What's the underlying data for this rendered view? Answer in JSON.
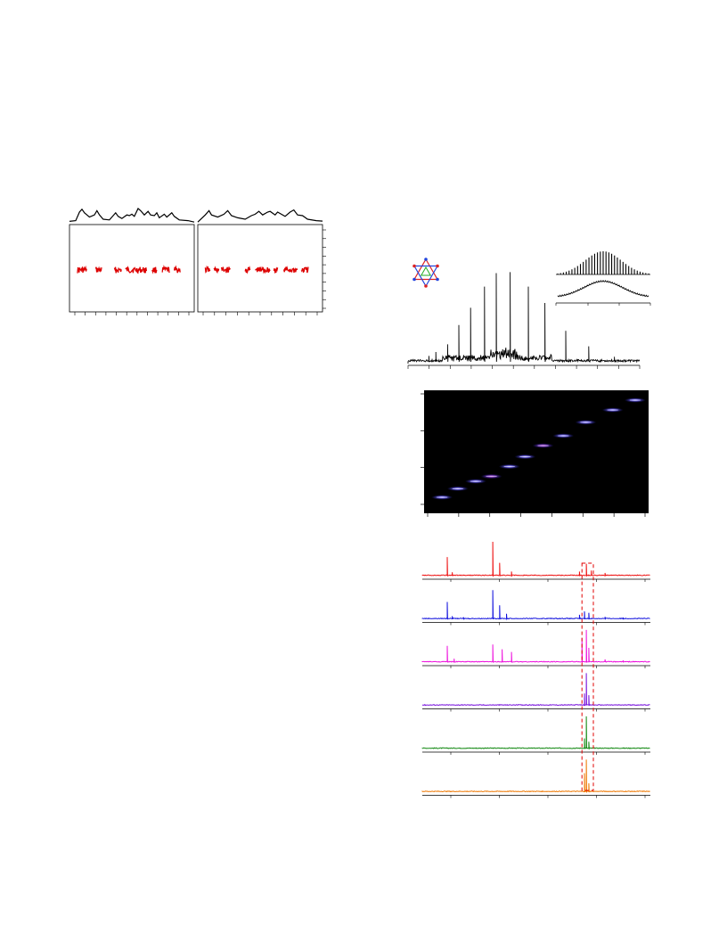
{
  "figure_left": {
    "panels": [
      {
        "id": "panel-a",
        "trace": [
          [
            0,
            0.1
          ],
          [
            0.05,
            0.15
          ],
          [
            0.08,
            0.75
          ],
          [
            0.1,
            0.95
          ],
          [
            0.12,
            0.7
          ],
          [
            0.14,
            0.55
          ],
          [
            0.16,
            0.4
          ],
          [
            0.2,
            0.55
          ],
          [
            0.22,
            0.85
          ],
          [
            0.24,
            0.55
          ],
          [
            0.27,
            0.25
          ],
          [
            0.32,
            0.2
          ],
          [
            0.37,
            0.7
          ],
          [
            0.39,
            0.45
          ],
          [
            0.42,
            0.3
          ],
          [
            0.46,
            0.55
          ],
          [
            0.48,
            0.5
          ],
          [
            0.5,
            0.6
          ],
          [
            0.52,
            0.45
          ],
          [
            0.55,
            1.0
          ],
          [
            0.57,
            0.85
          ],
          [
            0.6,
            0.55
          ],
          [
            0.63,
            0.8
          ],
          [
            0.65,
            0.55
          ],
          [
            0.68,
            0.5
          ],
          [
            0.7,
            0.7
          ],
          [
            0.72,
            0.35
          ],
          [
            0.76,
            0.6
          ],
          [
            0.78,
            0.4
          ],
          [
            0.82,
            0.7
          ],
          [
            0.84,
            0.45
          ],
          [
            0.88,
            0.2
          ],
          [
            0.95,
            0.15
          ],
          [
            1.0,
            0.05
          ]
        ],
        "clusters": [
          [
            0.06,
            0.14
          ],
          [
            0.21,
            0.26
          ],
          [
            0.36,
            0.42
          ],
          [
            0.45,
            0.62
          ],
          [
            0.66,
            0.7
          ],
          [
            0.74,
            0.8
          ],
          [
            0.84,
            0.89
          ]
        ],
        "cluster_level": 0.52,
        "x_ticks": 12,
        "y_ticks": 0
      },
      {
        "id": "panel-b",
        "trace": [
          [
            0,
            0.05
          ],
          [
            0.06,
            0.55
          ],
          [
            0.09,
            0.85
          ],
          [
            0.11,
            0.55
          ],
          [
            0.16,
            0.4
          ],
          [
            0.21,
            0.6
          ],
          [
            0.24,
            0.85
          ],
          [
            0.27,
            0.5
          ],
          [
            0.32,
            0.35
          ],
          [
            0.38,
            0.25
          ],
          [
            0.43,
            0.5
          ],
          [
            0.46,
            0.6
          ],
          [
            0.49,
            0.8
          ],
          [
            0.52,
            0.55
          ],
          [
            0.56,
            0.75
          ],
          [
            0.58,
            0.8
          ],
          [
            0.62,
            0.55
          ],
          [
            0.64,
            0.75
          ],
          [
            0.67,
            0.6
          ],
          [
            0.7,
            0.45
          ],
          [
            0.74,
            0.75
          ],
          [
            0.77,
            0.9
          ],
          [
            0.8,
            0.55
          ],
          [
            0.84,
            0.5
          ],
          [
            0.88,
            0.25
          ],
          [
            0.95,
            0.15
          ],
          [
            1.0,
            0.12
          ]
        ],
        "clusters": [
          [
            0.06,
            0.1
          ],
          [
            0.13,
            0.17
          ],
          [
            0.19,
            0.26
          ],
          [
            0.38,
            0.42
          ],
          [
            0.46,
            0.58
          ],
          [
            0.61,
            0.64
          ],
          [
            0.69,
            0.8
          ],
          [
            0.83,
            0.89
          ]
        ],
        "cluster_level": 0.52,
        "x_ticks": 11,
        "y_ticks": 10
      }
    ]
  },
  "figure_right": {
    "colors": {
      "spectrum": "#000000",
      "heatmap_bg": "#000000",
      "dashed_box": "#e00000",
      "traces": [
        "#ee1111",
        "#1111dd",
        "#ee11dd",
        "#7711dd",
        "#118811",
        "#ee7700"
      ]
    },
    "molecule_icon": "star-of-david-molecule-icon",
    "spectrum": {
      "peaks": [
        [
          0.09,
          0.08
        ],
        [
          0.12,
          0.12
        ],
        [
          0.17,
          0.2
        ],
        [
          0.22,
          0.4
        ],
        [
          0.27,
          0.58
        ],
        [
          0.33,
          0.8
        ],
        [
          0.38,
          0.94
        ],
        [
          0.44,
          0.95
        ],
        [
          0.52,
          0.8
        ],
        [
          0.59,
          0.63
        ],
        [
          0.68,
          0.34
        ],
        [
          0.78,
          0.18
        ],
        [
          0.89,
          0.07
        ]
      ],
      "x_ticks": 12
    },
    "inset": {
      "comb_peaks": 33,
      "envelope_peak": 0.5
    },
    "heatmap": {
      "blobs": [
        [
          0.08,
          0.13
        ],
        [
          0.15,
          0.2
        ],
        [
          0.23,
          0.26
        ],
        [
          0.3,
          0.3
        ],
        [
          0.38,
          0.38
        ],
        [
          0.45,
          0.46
        ],
        [
          0.53,
          0.55
        ],
        [
          0.62,
          0.63
        ],
        [
          0.72,
          0.74
        ],
        [
          0.84,
          0.84
        ],
        [
          0.94,
          0.92
        ]
      ],
      "x_ticks": 8,
      "y_ticks": 4
    },
    "traces": [
      {
        "id": "trace-1",
        "peaks": [
          [
            0.11,
            0.55
          ],
          [
            0.13,
            0.1
          ],
          [
            0.31,
            1.0
          ],
          [
            0.34,
            0.38
          ],
          [
            0.39,
            0.12
          ],
          [
            0.69,
            0.12
          ],
          [
            0.72,
            0.35
          ],
          [
            0.74,
            0.15
          ],
          [
            0.8,
            0.08
          ]
        ]
      },
      {
        "id": "trace-2",
        "peaks": [
          [
            0.11,
            0.5
          ],
          [
            0.13,
            0.08
          ],
          [
            0.18,
            0.05
          ],
          [
            0.31,
            0.85
          ],
          [
            0.34,
            0.4
          ],
          [
            0.37,
            0.15
          ],
          [
            0.69,
            0.12
          ],
          [
            0.71,
            0.22
          ],
          [
            0.73,
            0.18
          ],
          [
            0.8,
            0.06
          ],
          [
            0.88,
            0.04
          ]
        ]
      },
      {
        "id": "trace-3",
        "peaks": [
          [
            0.11,
            0.48
          ],
          [
            0.14,
            0.1
          ],
          [
            0.31,
            0.52
          ],
          [
            0.35,
            0.38
          ],
          [
            0.39,
            0.3
          ],
          [
            0.7,
            0.7
          ],
          [
            0.72,
            0.95
          ],
          [
            0.73,
            0.42
          ],
          [
            0.8,
            0.08
          ],
          [
            0.88,
            0.05
          ]
        ]
      },
      {
        "id": "trace-4",
        "peaks": [
          [
            0.71,
            0.35
          ],
          [
            0.72,
            0.95
          ],
          [
            0.73,
            0.3
          ]
        ]
      },
      {
        "id": "trace-5",
        "peaks": [
          [
            0.71,
            0.3
          ],
          [
            0.72,
            0.95
          ],
          [
            0.73,
            0.2
          ]
        ]
      },
      {
        "id": "trace-6",
        "peaks": [
          [
            0.71,
            0.55
          ],
          [
            0.72,
            0.95
          ],
          [
            0.73,
            0.25
          ]
        ]
      }
    ],
    "dashed_box_x": [
      0.7,
      0.75
    ],
    "trace_x_ticks": 5
  }
}
